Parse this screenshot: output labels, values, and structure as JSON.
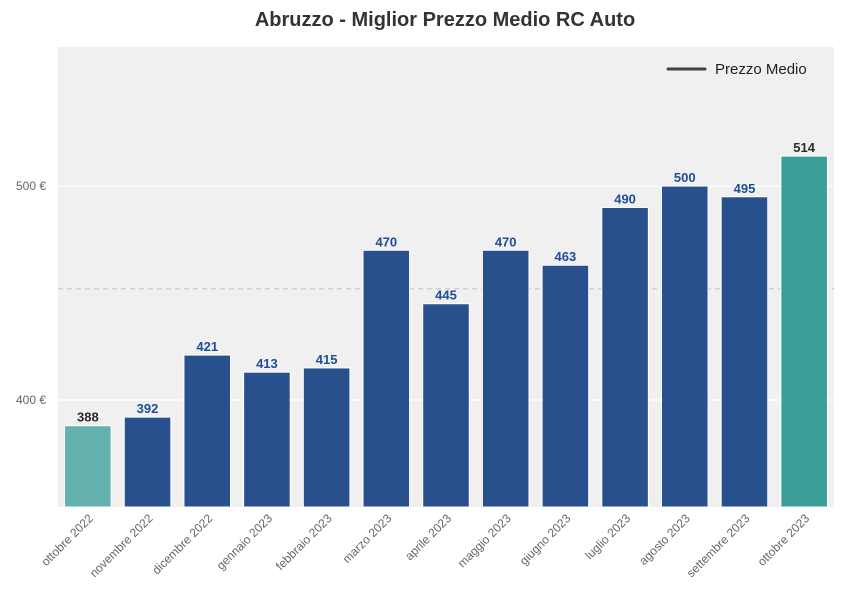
{
  "chart_data": {
    "type": "bar",
    "title": "Abruzzo - Miglior Prezzo Medio RC Auto",
    "xlabel": "",
    "ylabel": "",
    "categories": [
      "ottobre 2022",
      "novembre 2022",
      "dicembre 2022",
      "gennaio 2023",
      "febbraio 2023",
      "marzo 2023",
      "aprile 2023",
      "maggio 2023",
      "giugno 2023",
      "luglio 2023",
      "agosto 2023",
      "settembre 2023",
      "ottobre 2023"
    ],
    "values": [
      388,
      392,
      421,
      413,
      415,
      470,
      445,
      470,
      463,
      490,
      500,
      495,
      514
    ],
    "value_labels": [
      "388",
      "392",
      "421",
      "413",
      "415",
      "470",
      "445",
      "470",
      "463",
      "490",
      "500",
      "495",
      "514"
    ],
    "ylim": [
      350,
      565
    ],
    "yticks": [
      400,
      500
    ],
    "ytick_labels": [
      "400 €",
      "500 €"
    ],
    "average_line": 452,
    "legend": {
      "label": "Prezzo Medio",
      "placement": "top-right"
    },
    "grid": true,
    "colors": {
      "bar_main": "#27508C",
      "bar_first": "#63B2AE",
      "bar_last": "#3A9E96",
      "label_main": "#1E4E95",
      "label_edge": "#2B2B2B",
      "plot_bg": "#F0F0F0",
      "average_line": "#CCCCCC",
      "legend_line": "#444444"
    }
  }
}
